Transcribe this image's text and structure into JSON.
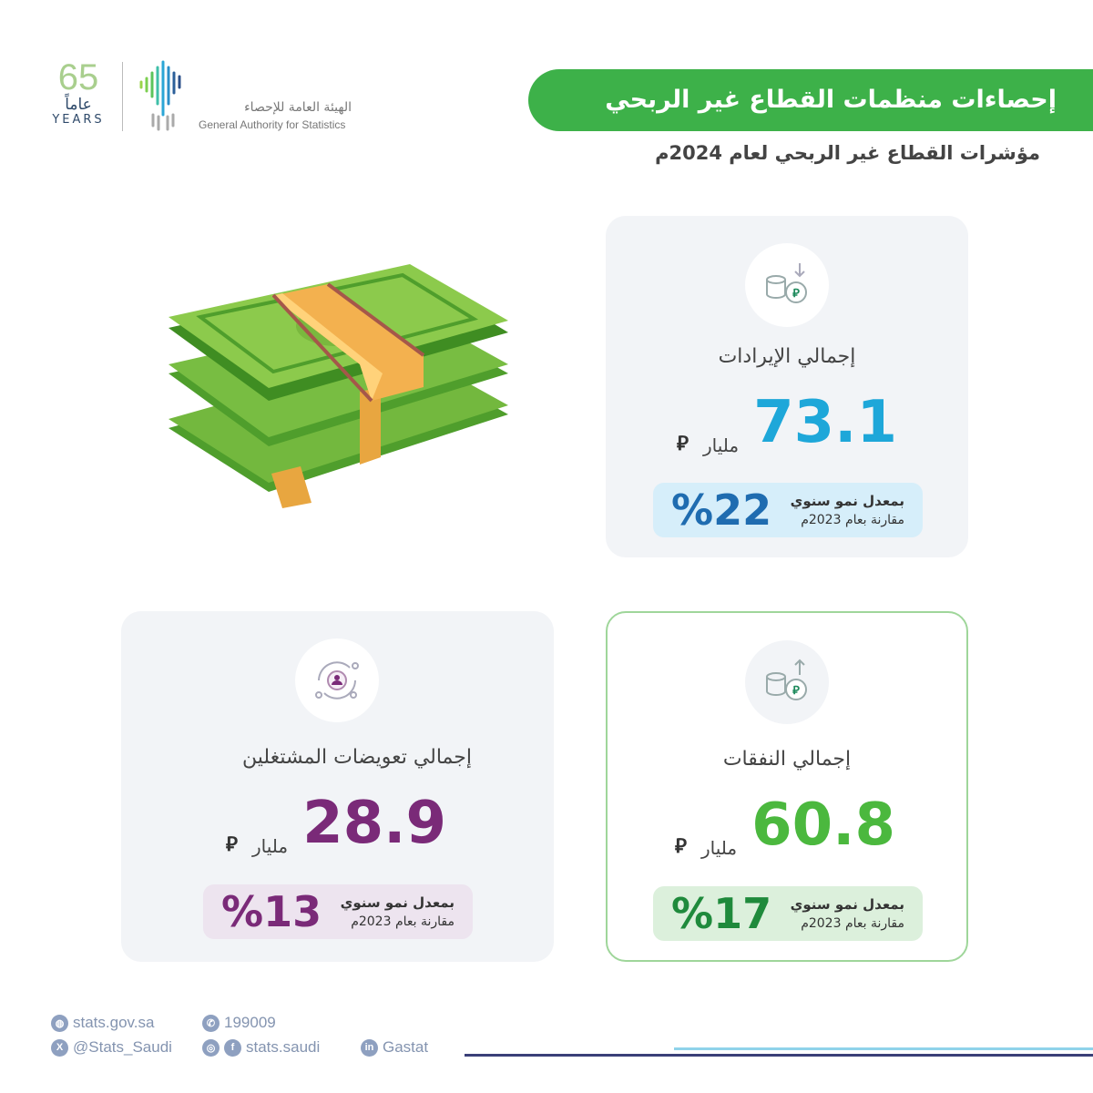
{
  "logo": {
    "anniversary_number": "65",
    "anniversary_ar": "عاماً",
    "anniversary_en": "YEARS",
    "org_ar": "الهيئة العامة للإحصاء",
    "org_en": "General Authority for Statistics"
  },
  "header": {
    "title": "إحصاءات منظمات القطاع غير الربحي",
    "subtitle": "مؤشرات القطاع غير الربحي لعام 2024م"
  },
  "cards": [
    {
      "label": "إجمالي الإيرادات",
      "value": "73.1",
      "unit": "مليار",
      "currency": "riyal-icon",
      "growth_label": "بمعدل نمو سنوي",
      "growth_compare": "مقارنة بعام 2023م",
      "growth": "%22",
      "value_color": "#1ea7d9",
      "growth_color": "#1f6cb0",
      "pill_color": "#d6eefa",
      "icon": "coins-arrow-down-icon"
    },
    {
      "label": "إجمالي النفقات",
      "value": "60.8",
      "unit": "مليار",
      "currency": "riyal-icon",
      "growth_label": "بمعدل نمو سنوي",
      "growth_compare": "مقارنة بعام 2023م",
      "growth": "%17",
      "value_color": "#4bb83e",
      "growth_color": "#1f8a3c",
      "pill_color": "#dcf0dc",
      "icon": "coins-arrow-up-icon"
    },
    {
      "label": "إجمالي تعويضات المشتغلين",
      "value": "28.9",
      "unit": "مليار",
      "currency": "riyal-icon",
      "growth_label": "بمعدل نمو سنوي",
      "growth_compare": "مقارنة بعام 2023م",
      "growth": "%13",
      "value_color": "#7a2a78",
      "growth_color": "#7a2a78",
      "pill_color": "#ede4ef",
      "icon": "employee-cycle-icon"
    }
  ],
  "footer": {
    "website": "stats.gov.sa",
    "phone": "199009",
    "twitter": "@Stats_Saudi",
    "social": "stats.saudi",
    "linkedin": "Gastat"
  }
}
